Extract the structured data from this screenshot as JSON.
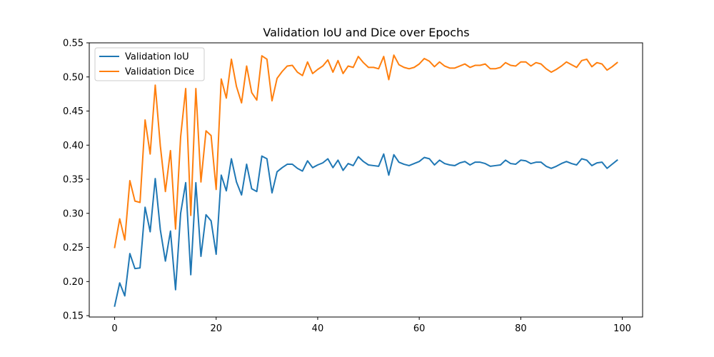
{
  "chart_data": {
    "type": "line",
    "title": "Validation IoU and Dice over Epochs",
    "xlabel": "",
    "ylabel": "",
    "xlim": [
      -5,
      104
    ],
    "ylim": [
      0.148,
      0.55
    ],
    "xticks": [
      0,
      20,
      40,
      60,
      80,
      100
    ],
    "yticks": [
      0.15,
      0.2,
      0.25,
      0.3,
      0.35,
      0.4,
      0.45,
      0.5,
      0.55
    ],
    "ytick_labels": [
      "0.15",
      "0.20",
      "0.25",
      "0.30",
      "0.35",
      "0.40",
      "0.45",
      "0.50",
      "0.55"
    ],
    "grid": false,
    "legend_position": "top-left",
    "x": [
      0,
      1,
      2,
      3,
      4,
      5,
      6,
      7,
      8,
      9,
      10,
      11,
      12,
      13,
      14,
      15,
      16,
      17,
      18,
      19,
      20,
      21,
      22,
      23,
      24,
      25,
      26,
      27,
      28,
      29,
      30,
      31,
      32,
      33,
      34,
      35,
      36,
      37,
      38,
      39,
      40,
      41,
      42,
      43,
      44,
      45,
      46,
      47,
      48,
      49,
      50,
      51,
      52,
      53,
      54,
      55,
      56,
      57,
      58,
      59,
      60,
      61,
      62,
      63,
      64,
      65,
      66,
      67,
      68,
      69,
      70,
      71,
      72,
      73,
      74,
      75,
      76,
      77,
      78,
      79,
      80,
      81,
      82,
      83,
      84,
      85,
      86,
      87,
      88,
      89,
      90,
      91,
      92,
      93,
      94,
      95,
      96,
      97,
      98,
      99
    ],
    "series": [
      {
        "name": "Validation IoU",
        "color": "#1f77b4",
        "values": [
          0.164,
          0.198,
          0.179,
          0.241,
          0.219,
          0.22,
          0.309,
          0.273,
          0.351,
          0.276,
          0.23,
          0.274,
          0.188,
          0.3,
          0.345,
          0.21,
          0.345,
          0.237,
          0.298,
          0.289,
          0.24,
          0.356,
          0.333,
          0.38,
          0.346,
          0.327,
          0.372,
          0.336,
          0.332,
          0.384,
          0.38,
          0.33,
          0.361,
          0.367,
          0.372,
          0.372,
          0.366,
          0.362,
          0.377,
          0.367,
          0.371,
          0.374,
          0.38,
          0.367,
          0.378,
          0.363,
          0.373,
          0.37,
          0.383,
          0.376,
          0.371,
          0.37,
          0.369,
          0.387,
          0.356,
          0.386,
          0.375,
          0.372,
          0.37,
          0.373,
          0.376,
          0.382,
          0.38,
          0.371,
          0.378,
          0.373,
          0.371,
          0.37,
          0.374,
          0.376,
          0.371,
          0.375,
          0.375,
          0.373,
          0.369,
          0.37,
          0.371,
          0.378,
          0.373,
          0.372,
          0.378,
          0.377,
          0.373,
          0.375,
          0.375,
          0.369,
          0.366,
          0.369,
          0.373,
          0.376,
          0.373,
          0.371,
          0.38,
          0.378,
          0.37,
          0.374,
          0.375,
          0.366,
          0.372,
          0.378
        ]
      },
      {
        "name": "Validation Dice",
        "color": "#ff7f0e",
        "values": [
          0.25,
          0.292,
          0.261,
          0.348,
          0.318,
          0.316,
          0.437,
          0.387,
          0.488,
          0.399,
          0.332,
          0.392,
          0.277,
          0.412,
          0.483,
          0.297,
          0.483,
          0.346,
          0.421,
          0.414,
          0.335,
          0.497,
          0.469,
          0.526,
          0.486,
          0.462,
          0.516,
          0.477,
          0.466,
          0.531,
          0.526,
          0.465,
          0.498,
          0.508,
          0.516,
          0.517,
          0.507,
          0.502,
          0.522,
          0.505,
          0.511,
          0.516,
          0.525,
          0.507,
          0.524,
          0.505,
          0.516,
          0.514,
          0.53,
          0.521,
          0.514,
          0.514,
          0.512,
          0.53,
          0.496,
          0.532,
          0.518,
          0.514,
          0.512,
          0.514,
          0.519,
          0.527,
          0.523,
          0.515,
          0.522,
          0.516,
          0.513,
          0.513,
          0.516,
          0.519,
          0.514,
          0.517,
          0.517,
          0.519,
          0.512,
          0.512,
          0.514,
          0.521,
          0.517,
          0.516,
          0.522,
          0.522,
          0.516,
          0.521,
          0.519,
          0.512,
          0.507,
          0.511,
          0.516,
          0.522,
          0.518,
          0.514,
          0.524,
          0.526,
          0.515,
          0.521,
          0.519,
          0.51,
          0.515,
          0.521
        ]
      }
    ]
  }
}
